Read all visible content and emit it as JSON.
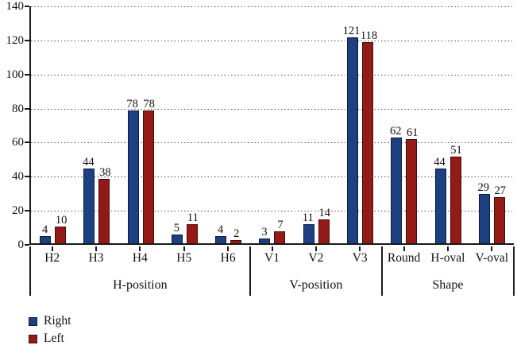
{
  "chart_data": {
    "type": "bar",
    "title": "",
    "xlabel": "",
    "ylabel": "",
    "ylim": [
      0,
      140
    ],
    "ytick_step": 20,
    "grid": "horizontal-dotted",
    "legend_position": "bottom-left",
    "bar_value_labels": true,
    "groups": [
      {
        "label": "H-position",
        "categories": [
          "H2",
          "H3",
          "H4",
          "H5",
          "H6"
        ]
      },
      {
        "label": "V-position",
        "categories": [
          "V1",
          "V2",
          "V3"
        ]
      },
      {
        "label": "Shape",
        "categories": [
          "Round",
          "H-oval",
          "V-oval"
        ]
      }
    ],
    "series": [
      {
        "name": "Right",
        "color": "#1d4080",
        "border_color": "#0d1c42",
        "values": [
          4,
          44,
          78,
          5,
          4,
          3,
          11,
          121,
          62,
          44,
          29
        ]
      },
      {
        "name": "Left",
        "color": "#941a18",
        "border_color": "#470b09",
        "values": [
          10,
          38,
          78,
          11,
          2,
          7,
          14,
          118,
          61,
          51,
          27
        ]
      }
    ]
  }
}
